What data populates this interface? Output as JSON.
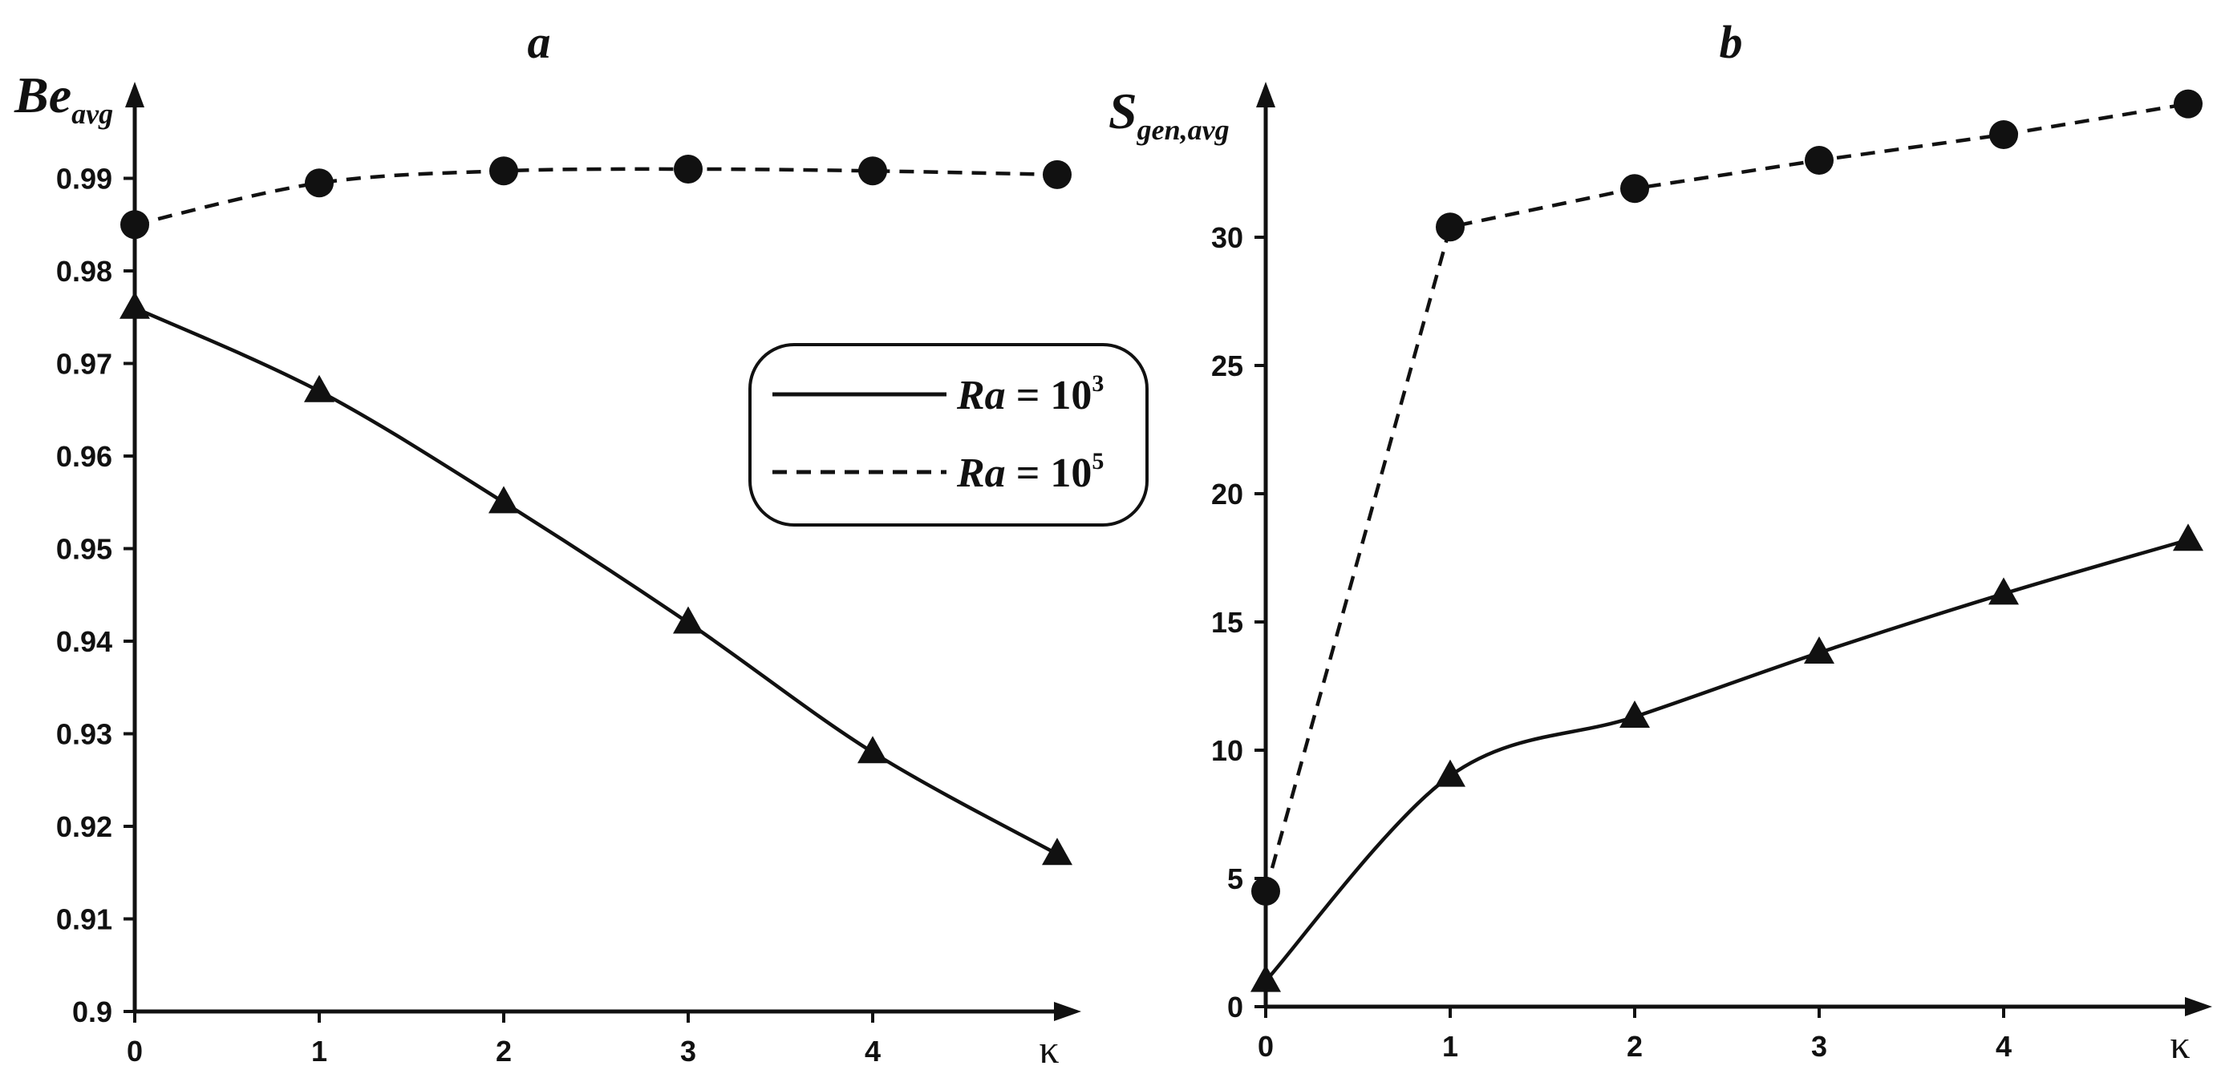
{
  "chart_data": [
    {
      "type": "line",
      "title": "a",
      "ylabel": "Be",
      "ylabel_sub": "avg",
      "xlabel": "κ",
      "x": [
        0,
        1,
        2,
        3,
        4,
        5
      ],
      "x_tick_labels": [
        "0",
        "1",
        "2",
        "3",
        "4",
        "κ"
      ],
      "y_ticks": [
        "0.9",
        "0.91",
        "0.92",
        "0.93",
        "0.94",
        "0.95",
        "0.96",
        "0.97",
        "0.98",
        "0.99"
      ],
      "ylim": [
        0.9,
        1.0
      ],
      "xlim": [
        0,
        5
      ],
      "series": [
        {
          "name": "Ra = 10^3",
          "style": "solid",
          "marker": "triangle",
          "values": [
            0.976,
            0.967,
            0.955,
            0.942,
            0.928,
            0.917
          ]
        },
        {
          "name": "Ra = 10^5",
          "style": "dashed",
          "marker": "circle",
          "values": [
            0.985,
            0.9895,
            0.9908,
            0.991,
            0.9908,
            0.9904
          ]
        }
      ],
      "legend": {
        "placement": "center-right",
        "entries": [
          {
            "prefix": "Ra",
            "eq": " = 10",
            "sup": "3",
            "style": "solid"
          },
          {
            "prefix": "Ra",
            "eq": " = 10",
            "sup": "5",
            "style": "dashed"
          }
        ]
      },
      "grid": false
    },
    {
      "type": "line",
      "title": "b",
      "ylabel": "S",
      "ylabel_sub": "gen,avg",
      "xlabel": "κ",
      "x": [
        0,
        1,
        2,
        3,
        4,
        5
      ],
      "x_tick_labels": [
        "0",
        "1",
        "2",
        "3",
        "4",
        "κ"
      ],
      "y_ticks": [
        "0",
        "5",
        "10",
        "15",
        "20",
        "25",
        "30"
      ],
      "ylim": [
        0,
        35
      ],
      "xlim": [
        0,
        5
      ],
      "series": [
        {
          "name": "Ra = 10^3",
          "style": "solid",
          "marker": "triangle",
          "values": [
            1.0,
            9.0,
            11.3,
            13.8,
            16.1,
            18.2
          ]
        },
        {
          "name": "Ra = 10^5",
          "style": "dashed",
          "marker": "circle",
          "values": [
            4.5,
            30.4,
            31.9,
            33.0,
            34.0,
            35.2
          ]
        }
      ],
      "grid": false
    }
  ]
}
